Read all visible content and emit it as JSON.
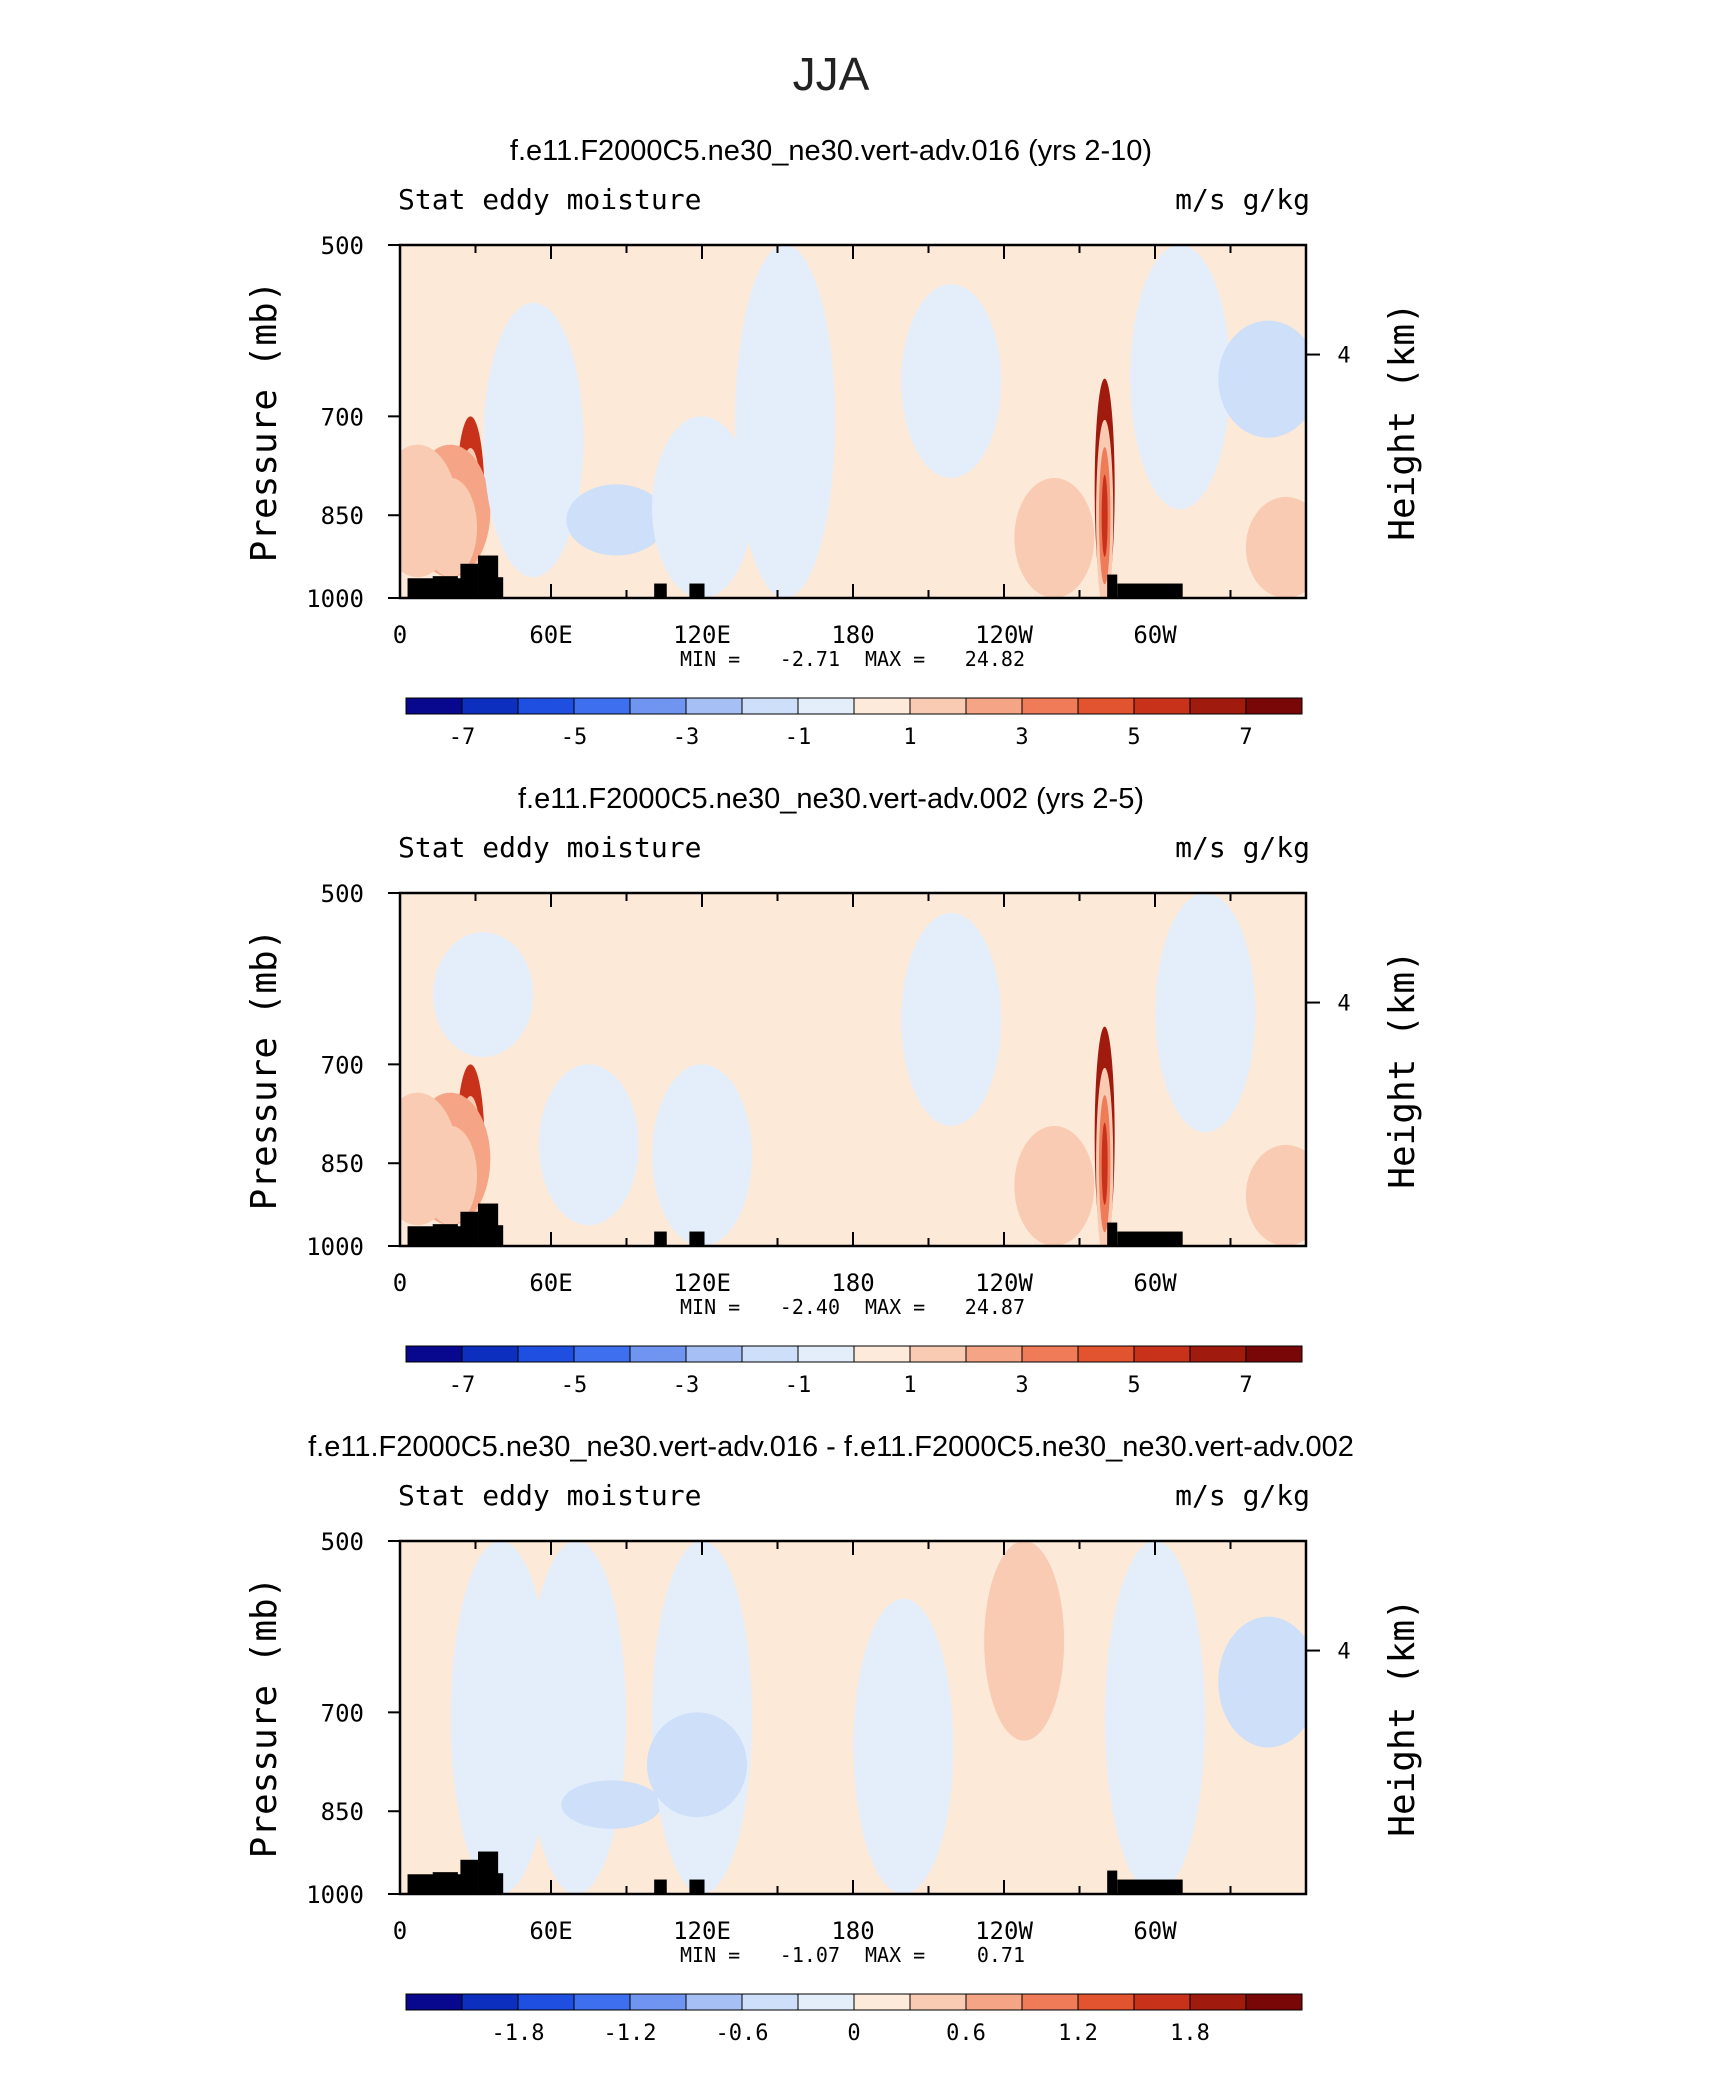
{
  "main_title": "JJA",
  "colors": {
    "land": "#000000",
    "frame": "#000000",
    "neutral_pos": "#fde9d8",
    "neutral_neg": "#d8e8fa"
  },
  "chart_data": [
    {
      "type": "heatmap",
      "title": "f.e11.F2000C5.ne30_ne30.vert-adv.016 (yrs 2-10)",
      "left_string": "Stat eddy moisture",
      "right_string": "m/s g/kg",
      "ylabel": "Pressure (mb)",
      "y2label": "Height (km)",
      "y_ticks": [
        "500",
        "700",
        "850",
        "1000"
      ],
      "y_tick_values": [
        500,
        700,
        850,
        1000
      ],
      "y2_ticks": [
        "4"
      ],
      "x_ticks": [
        "0",
        "60E",
        "120E",
        "180",
        "120W",
        "60W"
      ],
      "x_tick_values": [
        0,
        60,
        120,
        180,
        240,
        300
      ],
      "xlim": [
        0,
        360
      ],
      "ylim": [
        1000,
        500
      ],
      "min_label": "MIN =",
      "min_value": "-2.71",
      "max_label": "MAX =",
      "max_value": "24.82",
      "colorbar_labels": [
        "-7",
        "-5",
        "-3",
        "-1",
        "1",
        "3",
        "5",
        "7"
      ],
      "colorbar_colors": [
        "#08088e",
        "#0c2fbf",
        "#1f4fe0",
        "#3d6fee",
        "#6f95f0",
        "#a6bff5",
        "#cddff9",
        "#e4eefb",
        "#fdeadb",
        "#f9cbb3",
        "#f5a585",
        "#ef7b58",
        "#e2532f",
        "#c8321b",
        "#a11a0e",
        "#7a0707"
      ],
      "features": [
        {
          "lon": 28,
          "p_top": 700,
          "p_bot": 960,
          "level": 6
        },
        {
          "lon": 20,
          "p_top": 740,
          "p_bot": 960,
          "level": 3
        },
        {
          "lon": 7,
          "p_top": 740,
          "p_bot": 960,
          "level": 2
        },
        {
          "lon": 53,
          "p_top": 560,
          "p_bot": 960,
          "level": -1
        },
        {
          "lon": 86,
          "p_top": 800,
          "p_bot": 920,
          "level": -2
        },
        {
          "lon": 120,
          "p_top": 700,
          "p_bot": 1000,
          "level": -1
        },
        {
          "lon": 153,
          "p_top": 500,
          "p_bot": 1000,
          "level": -1
        },
        {
          "lon": 219,
          "p_top": 540,
          "p_bot": 790,
          "level": -1
        },
        {
          "lon": 260,
          "p_top": 790,
          "p_bot": 1000,
          "level": 2
        },
        {
          "lon": 280,
          "p_top": 650,
          "p_bot": 1000,
          "level": 7
        },
        {
          "lon": 310,
          "p_top": 500,
          "p_bot": 840,
          "level": -1
        },
        {
          "lon": 345,
          "p_top": 580,
          "p_bot": 730,
          "level": -2
        },
        {
          "lon": 352,
          "p_top": 820,
          "p_bot": 1000,
          "level": 2
        }
      ]
    },
    {
      "type": "heatmap",
      "title": "f.e11.F2000C5.ne30_ne30.vert-adv.002 (yrs 2-5)",
      "left_string": "Stat eddy moisture",
      "right_string": "m/s g/kg",
      "ylabel": "Pressure (mb)",
      "y2label": "Height (km)",
      "y_ticks": [
        "500",
        "700",
        "850",
        "1000"
      ],
      "y_tick_values": [
        500,
        700,
        850,
        1000
      ],
      "y2_ticks": [
        "4"
      ],
      "x_ticks": [
        "0",
        "60E",
        "120E",
        "180",
        "120W",
        "60W"
      ],
      "x_tick_values": [
        0,
        60,
        120,
        180,
        240,
        300
      ],
      "xlim": [
        0,
        360
      ],
      "ylim": [
        1000,
        500
      ],
      "min_label": "MIN =",
      "min_value": "-2.40",
      "max_label": "MAX =",
      "max_value": "24.87",
      "colorbar_labels": [
        "-7",
        "-5",
        "-3",
        "-1",
        "1",
        "3",
        "5",
        "7"
      ],
      "colorbar_colors": [
        "#08088e",
        "#0c2fbf",
        "#1f4fe0",
        "#3d6fee",
        "#6f95f0",
        "#a6bff5",
        "#cddff9",
        "#e4eefb",
        "#fdeadb",
        "#f9cbb3",
        "#f5a585",
        "#ef7b58",
        "#e2532f",
        "#c8321b",
        "#a11a0e",
        "#7a0707"
      ],
      "features": [
        {
          "lon": 28,
          "p_top": 700,
          "p_bot": 960,
          "level": 6
        },
        {
          "lon": 20,
          "p_top": 740,
          "p_bot": 960,
          "level": 3
        },
        {
          "lon": 7,
          "p_top": 740,
          "p_bot": 960,
          "level": 2
        },
        {
          "lon": 33,
          "p_top": 540,
          "p_bot": 690,
          "level": -1
        },
        {
          "lon": 75,
          "p_top": 700,
          "p_bot": 960,
          "level": -1
        },
        {
          "lon": 120,
          "p_top": 700,
          "p_bot": 1000,
          "level": -1
        },
        {
          "lon": 219,
          "p_top": 520,
          "p_bot": 790,
          "level": -1
        },
        {
          "lon": 260,
          "p_top": 790,
          "p_bot": 1000,
          "level": 2
        },
        {
          "lon": 280,
          "p_top": 650,
          "p_bot": 1000,
          "level": 7
        },
        {
          "lon": 320,
          "p_top": 500,
          "p_bot": 800,
          "level": -1
        },
        {
          "lon": 352,
          "p_top": 820,
          "p_bot": 1000,
          "level": 2
        }
      ]
    },
    {
      "type": "heatmap",
      "title": "f.e11.F2000C5.ne30_ne30.vert-adv.016 - f.e11.F2000C5.ne30_ne30.vert-adv.002",
      "left_string": "Stat eddy moisture",
      "right_string": "m/s g/kg",
      "ylabel": "Pressure (mb)",
      "y2label": "Height (km)",
      "y_ticks": [
        "500",
        "700",
        "850",
        "1000"
      ],
      "y_tick_values": [
        500,
        700,
        850,
        1000
      ],
      "y2_ticks": [
        "4"
      ],
      "x_ticks": [
        "0",
        "60E",
        "120E",
        "180",
        "120W",
        "60W"
      ],
      "x_tick_values": [
        0,
        60,
        120,
        180,
        240,
        300
      ],
      "xlim": [
        0,
        360
      ],
      "ylim": [
        1000,
        500
      ],
      "min_label": "MIN =",
      "min_value": "-1.07",
      "max_label": "MAX =",
      "max_value": "0.71",
      "colorbar_labels": [
        "-1.8",
        "-1.2",
        "-0.6",
        "0",
        "0.6",
        "1.2",
        "1.8"
      ],
      "colorbar_colors": [
        "#08088e",
        "#0c2fbf",
        "#1f4fe0",
        "#3d6fee",
        "#6f95f0",
        "#a6bff5",
        "#cddff9",
        "#e4eefb",
        "#fdeadb",
        "#f9cbb3",
        "#f5a585",
        "#ef7b58",
        "#e2532f",
        "#c8321b",
        "#a11a0e",
        "#7a0707"
      ],
      "features": [
        {
          "lon": 40,
          "p_top": 500,
          "p_bot": 1000,
          "level": -1
        },
        {
          "lon": 70,
          "p_top": 500,
          "p_bot": 1000,
          "level": -1
        },
        {
          "lon": 84,
          "p_top": 800,
          "p_bot": 880,
          "level": -2
        },
        {
          "lon": 120,
          "p_top": 500,
          "p_bot": 1000,
          "level": -1
        },
        {
          "lon": 118,
          "p_top": 700,
          "p_bot": 860,
          "level": -2
        },
        {
          "lon": 200,
          "p_top": 560,
          "p_bot": 1000,
          "level": -1
        },
        {
          "lon": 248,
          "p_top": 500,
          "p_bot": 740,
          "level": 2
        },
        {
          "lon": 300,
          "p_top": 500,
          "p_bot": 1000,
          "level": -1
        },
        {
          "lon": 345,
          "p_top": 580,
          "p_bot": 750,
          "level": -2
        }
      ]
    }
  ]
}
